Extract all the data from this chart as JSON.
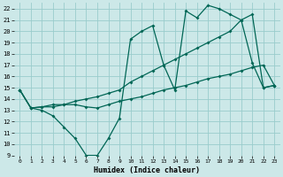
{
  "xlabel": "Humidex (Indice chaleur)",
  "bg_color": "#cce8e8",
  "grid_color": "#99cccc",
  "line_color": "#006655",
  "xlim": [
    -0.5,
    23.5
  ],
  "ylim": [
    9,
    22.5
  ],
  "xticks": [
    0,
    1,
    2,
    3,
    4,
    5,
    6,
    7,
    8,
    9,
    10,
    11,
    12,
    13,
    14,
    15,
    16,
    17,
    18,
    19,
    20,
    21,
    22,
    23
  ],
  "yticks": [
    9,
    10,
    11,
    12,
    13,
    14,
    15,
    16,
    17,
    18,
    19,
    20,
    21,
    22
  ],
  "line1_x": [
    0,
    1,
    2,
    3,
    4,
    5,
    6,
    7,
    8,
    9,
    10,
    11,
    12,
    13,
    14,
    15,
    16,
    17,
    18,
    19,
    20,
    21,
    22,
    23
  ],
  "line1_y": [
    14.8,
    13.2,
    13.0,
    12.5,
    11.5,
    10.5,
    9.0,
    9.0,
    10.5,
    12.3,
    19.3,
    20.0,
    20.5,
    17.0,
    14.8,
    21.8,
    21.2,
    22.3,
    22.0,
    21.5,
    21.0,
    17.2,
    15.0,
    15.2
  ],
  "line2_x": [
    0,
    1,
    2,
    3,
    4,
    5,
    6,
    7,
    8,
    9,
    10,
    11,
    12,
    13,
    14,
    15,
    16,
    17,
    18,
    19,
    20,
    21,
    22,
    23
  ],
  "line2_y": [
    14.8,
    13.2,
    13.3,
    13.3,
    13.5,
    13.5,
    13.3,
    13.2,
    13.5,
    13.8,
    14.0,
    14.2,
    14.5,
    14.8,
    15.0,
    15.2,
    15.5,
    15.8,
    16.0,
    16.2,
    16.5,
    16.8,
    17.0,
    15.2
  ],
  "line3_x": [
    0,
    1,
    2,
    3,
    4,
    5,
    6,
    7,
    8,
    9,
    10,
    11,
    12,
    13,
    14,
    15,
    16,
    17,
    18,
    19,
    20,
    21,
    22,
    23
  ],
  "line3_y": [
    14.8,
    13.2,
    13.3,
    13.5,
    13.5,
    13.8,
    14.0,
    14.2,
    14.5,
    14.8,
    15.5,
    16.0,
    16.5,
    17.0,
    17.5,
    18.0,
    18.5,
    19.0,
    19.5,
    20.0,
    21.0,
    21.5,
    15.0,
    15.2
  ]
}
